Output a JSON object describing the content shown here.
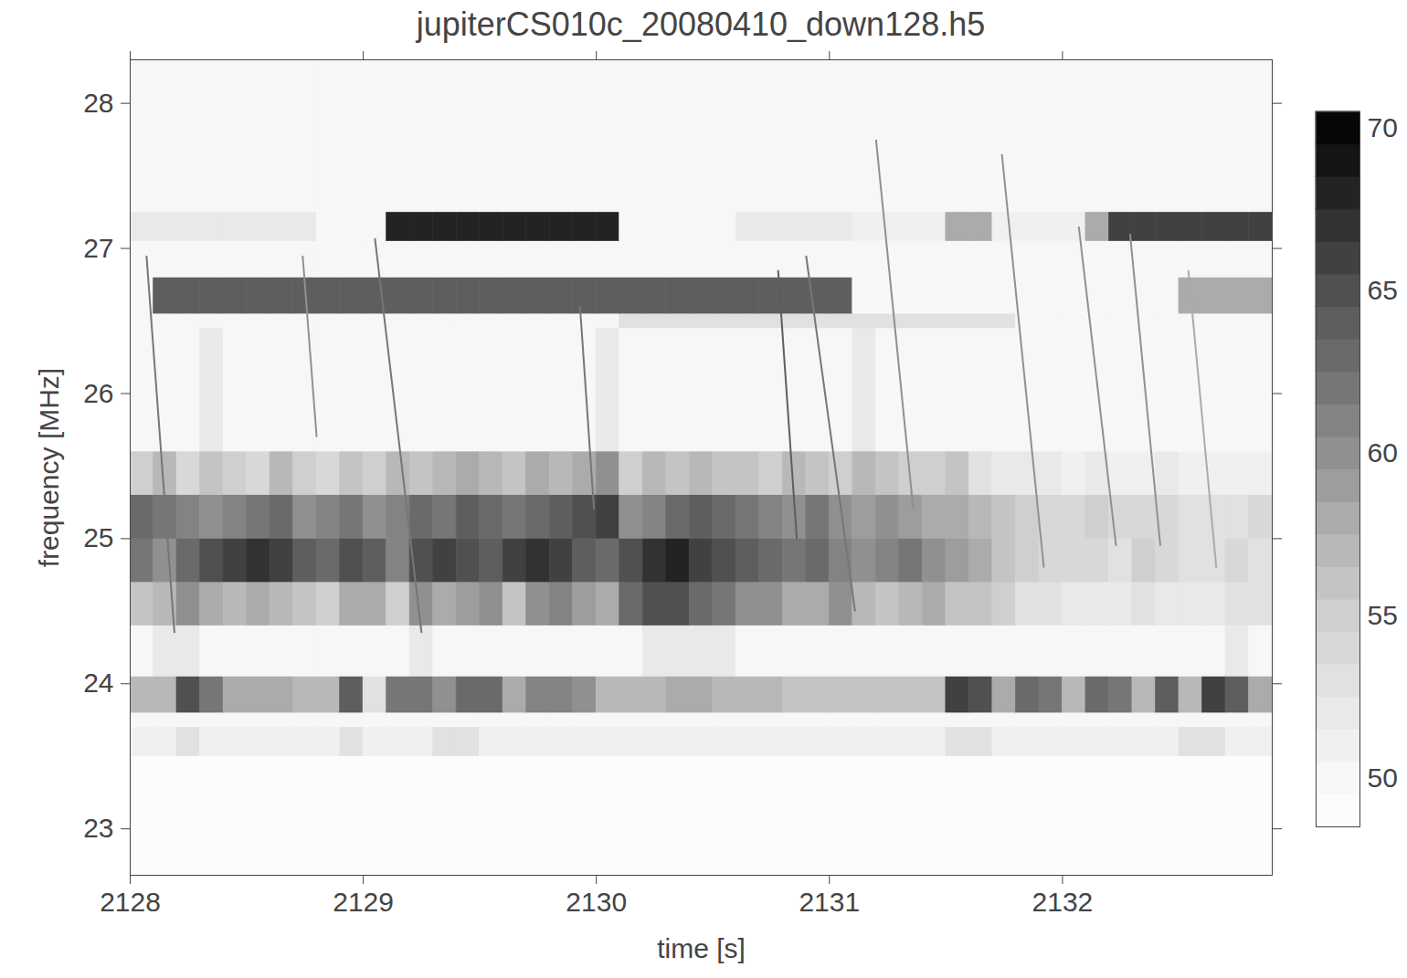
{
  "chart_data": {
    "type": "heatmap",
    "title": "jupiterCS010c_20080410_down128.h5",
    "x_label": "time [s]",
    "y_label": "frequency [MHz]",
    "xlim": [
      2128,
      2132.9
    ],
    "xticks": [
      2128,
      2129,
      2130,
      2131,
      2132
    ],
    "ylim": [
      22.68,
      28.3
    ],
    "yticks": [
      23,
      24,
      25,
      26,
      27,
      28
    ],
    "color": "greys",
    "time_bins": [
      2128,
      2128.1,
      2128.2,
      2128.3,
      2128.4,
      2128.5,
      2128.6,
      2128.7,
      2128.8,
      2128.9,
      2129,
      2129.1,
      2129.2,
      2129.3,
      2129.4,
      2129.5,
      2129.6,
      2129.7,
      2129.8,
      2129.9,
      2130,
      2130.1,
      2130.2,
      2130.3,
      2130.4,
      2130.5,
      2130.6,
      2130.7,
      2130.8,
      2130.9,
      2131,
      2131.1,
      2131.2,
      2131.3,
      2131.4,
      2131.5,
      2131.6,
      2131.7,
      2131.8,
      2131.9,
      2132,
      2132.1,
      2132.2,
      2132.3,
      2132.4,
      2132.5,
      2132.6,
      2132.7,
      2132.8,
      2132.9
    ],
    "frequency_bins": [
      22.68,
      23.5,
      23.7,
      23.8,
      24.05,
      24.4,
      24.7,
      25.0,
      25.3,
      25.6,
      26.45,
      26.55,
      26.8,
      27.05,
      27.25,
      28.3
    ],
    "cells": [
      [
        49,
        49,
        49,
        49,
        49,
        49,
        49,
        49,
        49,
        49,
        49,
        49,
        49,
        49,
        49,
        49,
        49,
        49,
        49,
        49,
        49,
        49,
        49,
        49,
        49,
        49,
        49,
        49,
        49,
        49,
        49,
        49,
        49,
        49,
        49,
        49,
        49,
        49,
        49,
        49,
        49,
        49,
        49,
        49,
        49,
        49,
        49,
        49,
        49
      ],
      [
        51,
        51,
        53,
        51,
        51,
        51,
        51,
        51,
        51,
        53,
        51,
        51,
        51,
        53,
        53,
        51,
        51,
        51,
        51,
        51,
        51,
        51,
        51,
        51,
        51,
        51,
        51,
        51,
        51,
        51,
        51,
        51,
        51,
        51,
        51,
        53,
        53,
        51,
        51,
        51,
        51,
        51,
        51,
        51,
        51,
        53,
        53,
        51,
        51
      ],
      [
        50,
        50,
        50,
        50,
        50,
        50,
        50,
        50,
        50,
        50,
        50,
        50,
        50,
        50,
        50,
        50,
        50,
        50,
        50,
        50,
        50,
        50,
        50,
        50,
        50,
        50,
        50,
        50,
        50,
        50,
        50,
        50,
        50,
        50,
        50,
        50,
        50,
        50,
        50,
        50,
        50,
        50,
        50,
        50,
        50,
        50,
        50,
        50,
        50
      ],
      [
        57,
        57,
        65,
        62,
        58,
        58,
        58,
        57,
        57,
        64,
        53,
        62,
        62,
        60,
        63,
        63,
        58,
        61,
        61,
        60,
        57,
        57,
        57,
        58,
        58,
        57,
        57,
        57,
        56,
        56,
        56,
        56,
        56,
        56,
        56,
        66,
        65,
        58,
        63,
        62,
        57,
        63,
        62,
        57,
        64,
        57,
        66,
        64,
        58
      ],
      [
        50,
        52,
        52,
        50,
        50,
        50,
        50,
        50,
        50,
        50,
        50,
        50,
        52,
        50,
        50,
        50,
        50,
        50,
        50,
        50,
        50,
        50,
        52,
        52,
        52,
        52,
        50,
        50,
        50,
        50,
        50,
        50,
        50,
        50,
        50,
        50,
        50,
        50,
        50,
        50,
        50,
        50,
        50,
        50,
        50,
        50,
        50,
        52,
        50
      ],
      [
        56,
        57,
        60,
        58,
        57,
        58,
        57,
        56,
        55,
        58,
        58,
        55,
        60,
        58,
        59,
        60,
        56,
        60,
        61,
        59,
        58,
        63,
        65,
        65,
        63,
        62,
        60,
        60,
        58,
        58,
        60,
        57,
        56,
        57,
        58,
        56,
        56,
        55,
        53,
        53,
        52,
        52,
        52,
        53,
        52,
        52,
        52,
        53,
        53
      ],
      [
        62,
        60,
        63,
        65,
        66,
        67,
        66,
        64,
        63,
        65,
        64,
        61,
        65,
        66,
        65,
        64,
        66,
        67,
        66,
        64,
        63,
        65,
        67,
        68,
        66,
        65,
        64,
        63,
        62,
        63,
        61,
        60,
        61,
        62,
        60,
        59,
        58,
        56,
        55,
        54,
        54,
        54,
        53,
        55,
        54,
        53,
        53,
        54,
        53
      ],
      [
        63,
        62,
        61,
        60,
        61,
        62,
        63,
        60,
        61,
        62,
        60,
        61,
        63,
        62,
        64,
        63,
        62,
        63,
        64,
        65,
        66,
        60,
        61,
        63,
        64,
        63,
        62,
        61,
        60,
        62,
        60,
        59,
        60,
        59,
        58,
        58,
        57,
        56,
        55,
        54,
        54,
        55,
        54,
        54,
        54,
        53,
        53,
        53,
        54
      ],
      [
        55,
        57,
        54,
        56,
        55,
        54,
        57,
        55,
        54,
        56,
        55,
        57,
        56,
        57,
        58,
        57,
        56,
        58,
        57,
        58,
        60,
        55,
        57,
        56,
        57,
        56,
        56,
        55,
        57,
        56,
        55,
        57,
        56,
        55,
        55,
        56,
        53,
        52,
        52,
        52,
        51,
        52,
        51,
        51,
        52,
        51,
        51,
        51,
        51
      ],
      [
        50,
        50,
        50,
        52,
        50,
        50,
        50,
        50,
        50,
        50,
        50,
        50,
        50,
        50,
        50,
        50,
        50,
        50,
        50,
        50,
        52,
        50,
        50,
        50,
        50,
        50,
        50,
        50,
        50,
        50,
        50,
        52,
        50,
        50,
        50,
        50,
        50,
        50,
        50,
        50,
        50,
        50,
        50,
        50,
        50,
        50,
        50,
        50,
        50
      ],
      [
        50,
        50,
        50,
        50,
        50,
        50,
        50,
        50,
        50,
        50,
        50,
        50,
        50,
        50,
        50,
        50,
        50,
        50,
        50,
        50,
        50,
        53,
        53,
        53,
        53,
        53,
        53,
        53,
        53,
        53,
        53,
        53,
        53,
        53,
        53,
        53,
        53,
        53,
        50,
        50,
        50,
        50,
        50,
        50,
        50,
        50,
        50,
        50,
        50
      ],
      [
        50,
        64,
        64,
        64,
        64,
        64,
        64,
        64,
        64,
        64,
        64,
        64,
        64,
        64,
        64,
        64,
        64,
        64,
        64,
        64,
        64,
        64,
        64,
        64,
        64,
        64,
        64,
        64,
        64,
        64,
        64,
        50,
        50,
        50,
        50,
        50,
        50,
        50,
        50,
        50,
        50,
        50,
        50,
        50,
        50,
        58,
        58,
        58,
        58
      ],
      [
        50,
        50,
        50,
        50,
        50,
        50,
        50,
        50,
        50,
        50,
        50,
        50,
        50,
        50,
        50,
        50,
        50,
        50,
        50,
        50,
        50,
        50,
        50,
        50,
        50,
        50,
        50,
        50,
        50,
        50,
        50,
        50,
        50,
        50,
        50,
        50,
        50,
        50,
        50,
        50,
        50,
        50,
        50,
        50,
        50,
        50,
        50,
        50,
        50
      ],
      [
        52,
        52,
        52,
        52,
        52,
        52,
        52,
        52,
        50,
        50,
        50,
        68,
        68,
        68,
        68,
        68,
        68,
        68,
        68,
        68,
        68,
        50,
        50,
        50,
        50,
        50,
        52,
        52,
        52,
        52,
        52,
        51,
        51,
        51,
        51,
        58,
        58,
        51,
        51,
        51,
        51,
        58,
        66,
        66,
        66,
        66,
        66,
        66,
        66
      ],
      [
        50,
        50,
        50,
        50,
        50,
        50,
        50,
        50,
        50,
        50,
        50,
        50,
        50,
        50,
        50,
        50,
        50,
        50,
        50,
        50,
        50,
        50,
        50,
        50,
        50,
        50,
        50,
        50,
        50,
        50,
        50,
        50,
        50,
        50,
        50,
        50,
        50,
        50,
        50,
        50,
        50,
        50,
        50,
        50,
        50,
        50,
        50,
        50,
        50
      ]
    ],
    "bursts": [
      {
        "time": [
          2128.07,
          2128.19
        ],
        "frequency": [
          26.95,
          24.35
        ],
        "value": 62
      },
      {
        "time": [
          2128.74,
          2128.8
        ],
        "frequency": [
          26.95,
          25.7
        ],
        "value": 60
      },
      {
        "time": [
          2129.05,
          2129.25
        ],
        "frequency": [
          27.07,
          24.35
        ],
        "value": 62
      },
      {
        "time": [
          2129.93,
          2129.99
        ],
        "frequency": [
          26.6,
          25.2
        ],
        "value": 62
      },
      {
        "time": [
          2130.78,
          2130.86
        ],
        "frequency": [
          26.85,
          25.0
        ],
        "value": 64
      },
      {
        "time": [
          2130.9,
          2131.11
        ],
        "frequency": [
          26.95,
          24.5
        ],
        "value": 62
      },
      {
        "time": [
          2131.2,
          2131.36
        ],
        "frequency": [
          27.75,
          25.2
        ],
        "value": 60
      },
      {
        "time": [
          2131.74,
          2131.92
        ],
        "frequency": [
          27.65,
          24.8
        ],
        "value": 60
      },
      {
        "time": [
          2132.07,
          2132.23
        ],
        "frequency": [
          27.15,
          24.95
        ],
        "value": 60
      },
      {
        "time": [
          2132.29,
          2132.42
        ],
        "frequency": [
          27.1,
          24.95
        ],
        "value": 60
      },
      {
        "time": [
          2132.54,
          2132.66
        ],
        "frequency": [
          26.85,
          24.8
        ],
        "value": 58
      }
    ],
    "colorbar": {
      "clim": [
        48.5,
        70.5
      ],
      "ticks": [
        50,
        55,
        60,
        65,
        70
      ]
    }
  }
}
